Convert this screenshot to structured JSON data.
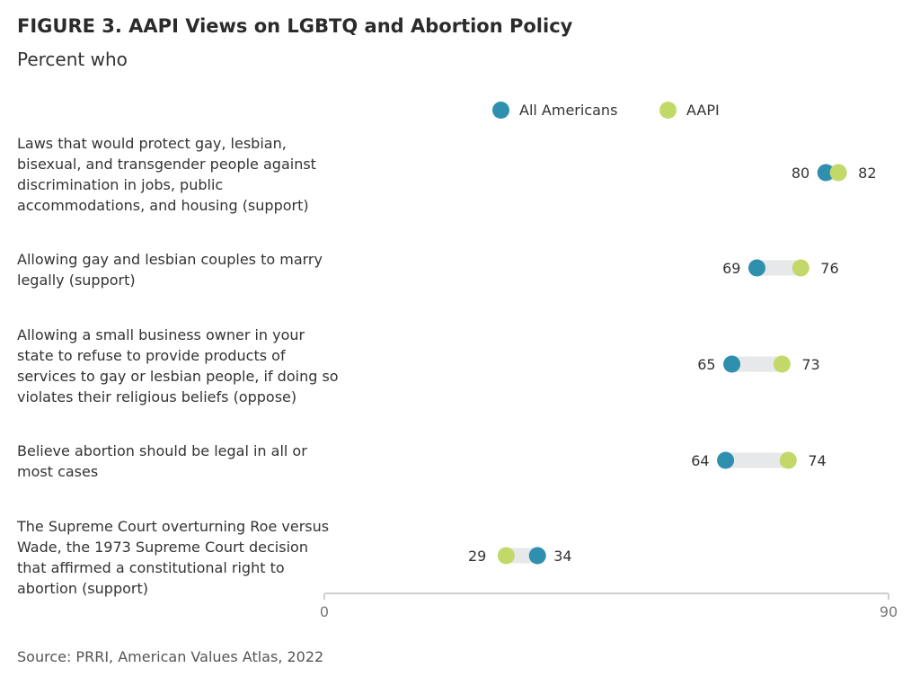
{
  "chart_data": {
    "type": "dot-range",
    "title": "FIGURE 3.  AAPI Views on LGBTQ and Abortion Policy",
    "subtitle": "Percent who",
    "source": "Source: PRRI, American Values Atlas, 2022",
    "xlim": [
      0,
      90
    ],
    "x_ticks": [
      "0",
      "90"
    ],
    "series": [
      {
        "name": "All Americans",
        "color": "#2f8faf"
      },
      {
        "name": "AAPI",
        "color": "#c2d96a"
      }
    ],
    "categories": [
      {
        "label": "Laws that would protect gay, lesbian, bisexual, and transgender people against discrimination in jobs, public accommodations, and housing (support)",
        "all_americans": 80,
        "aapi": 82
      },
      {
        "label": "Allowing gay and lesbian couples to marry legally (support)",
        "all_americans": 69,
        "aapi": 76
      },
      {
        "label": "Allowing a small business owner in your state to refuse to provide products of services to gay or lesbian people, if doing so violates their religious beliefs (oppose)",
        "all_americans": 65,
        "aapi": 73
      },
      {
        "label": "Believe abortion should be legal in all or most cases",
        "all_americans": 64,
        "aapi": 74
      },
      {
        "label": "The Supreme Court overturning Roe versus Wade, the 1973 Supreme Court decision that affirmed a constitutional right to abortion (support)",
        "all_americans": 34,
        "aapi": 29
      }
    ]
  }
}
